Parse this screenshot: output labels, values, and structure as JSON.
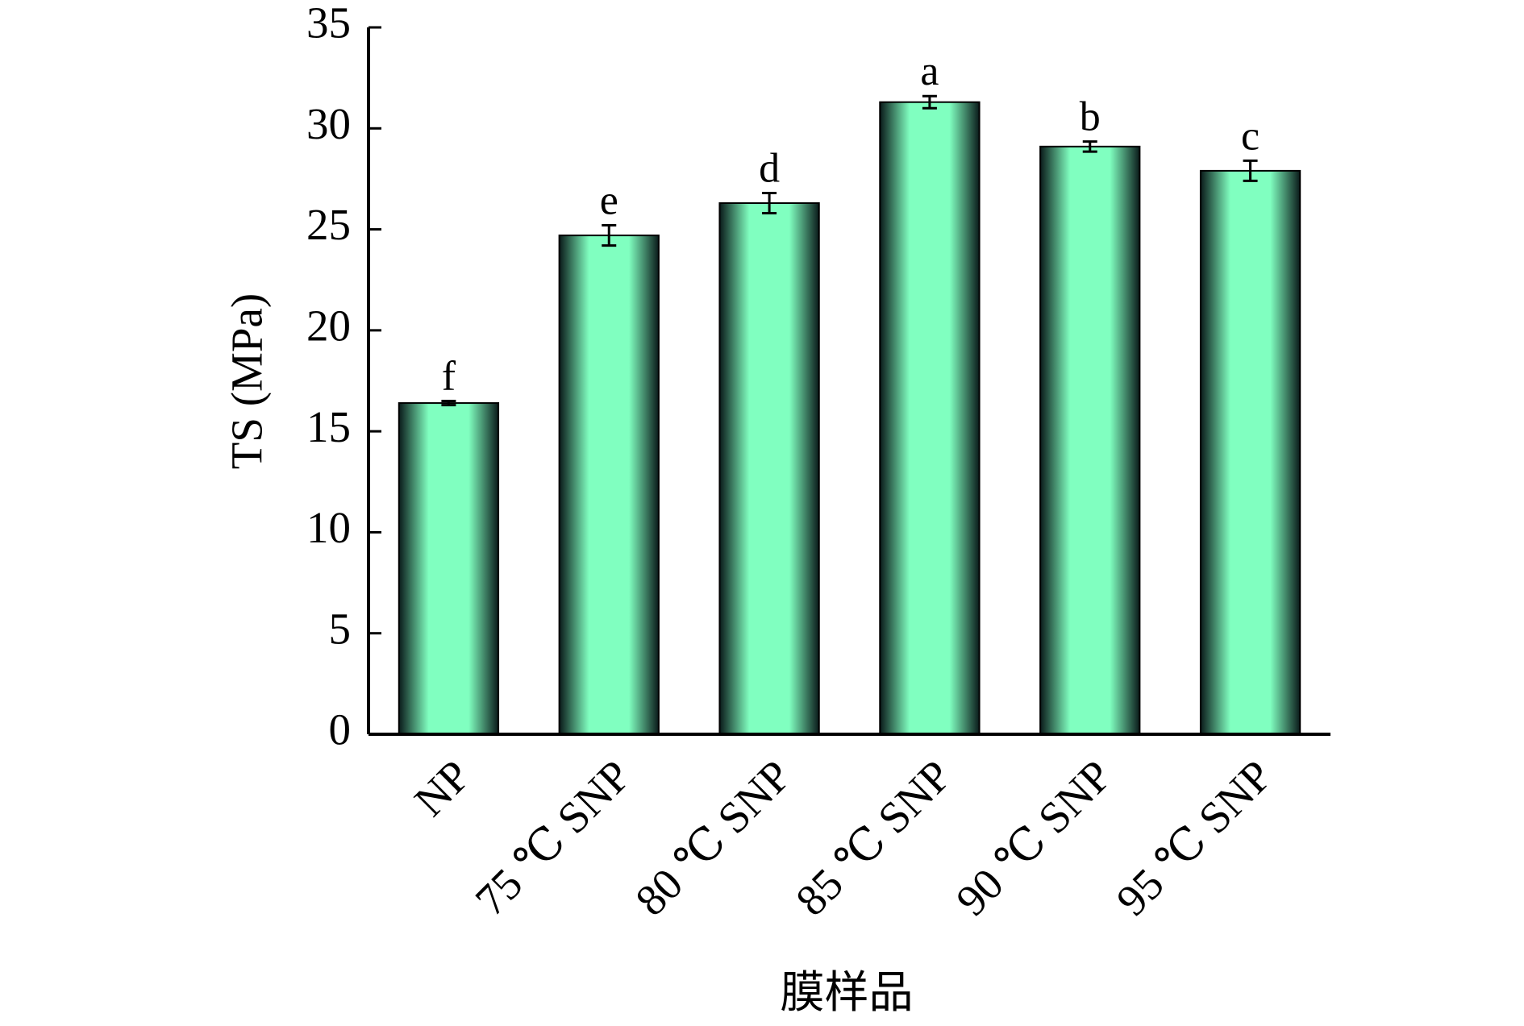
{
  "chart_data": {
    "type": "bar",
    "x_label": "膜样品",
    "y_label": "TS (MPa)",
    "categories": [
      "NP",
      "75 ℃ SNP",
      "80 ℃ SNP",
      "85 ℃ SNP",
      "90 ℃ SNP",
      "95 ℃ SNP"
    ],
    "values": [
      16.4,
      24.7,
      26.3,
      31.3,
      29.1,
      27.9
    ],
    "errors": [
      0.1,
      0.5,
      0.5,
      0.3,
      0.25,
      0.5
    ],
    "annotations": [
      "f",
      "e",
      "d",
      "a",
      "b",
      "c"
    ],
    "color": "#80ffc0",
    "ylim": [
      0,
      35
    ],
    "yticks": [
      0,
      5,
      10,
      15,
      20,
      25,
      30,
      35
    ],
    "grid": false
  }
}
